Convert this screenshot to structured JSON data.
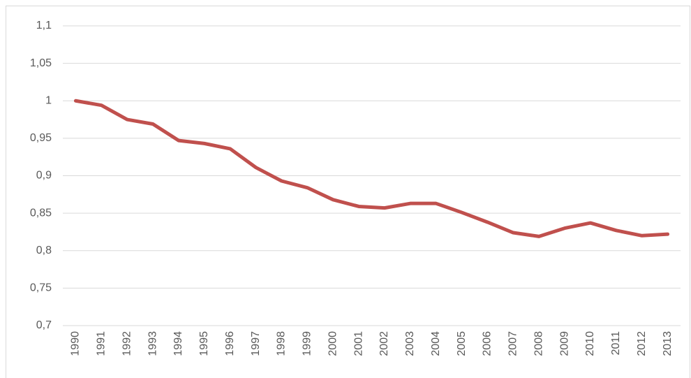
{
  "chart_data": {
    "type": "line",
    "categories": [
      "1990",
      "1991",
      "1992",
      "1993",
      "1994",
      "1995",
      "1996",
      "1997",
      "1998",
      "1999",
      "2000",
      "2001",
      "2002",
      "2003",
      "2004",
      "2005",
      "2006",
      "2007",
      "2008",
      "2009",
      "2010",
      "2011",
      "2012",
      "2013"
    ],
    "series": [
      {
        "color": "#c0504d",
        "values": [
          1.0,
          0.994,
          0.975,
          0.969,
          0.947,
          0.943,
          0.936,
          0.911,
          0.893,
          0.884,
          0.868,
          0.859,
          0.857,
          0.863,
          0.863,
          0.851,
          0.838,
          0.824,
          0.819,
          0.83,
          0.837,
          0.827,
          0.82,
          0.822
        ]
      }
    ],
    "ylim": [
      0.7,
      1.1
    ],
    "yticks": [
      {
        "value": 0.7,
        "label": "0,7"
      },
      {
        "value": 0.75,
        "label": "0,75"
      },
      {
        "value": 0.8,
        "label": "0,8"
      },
      {
        "value": 0.85,
        "label": "0,85"
      },
      {
        "value": 0.9,
        "label": "0,9"
      },
      {
        "value": 0.95,
        "label": "0,95"
      },
      1,
      {
        "value": 1.05,
        "label": "1,05"
      },
      {
        "value": 1.1,
        "label": "1,1"
      }
    ],
    "grid": true
  }
}
